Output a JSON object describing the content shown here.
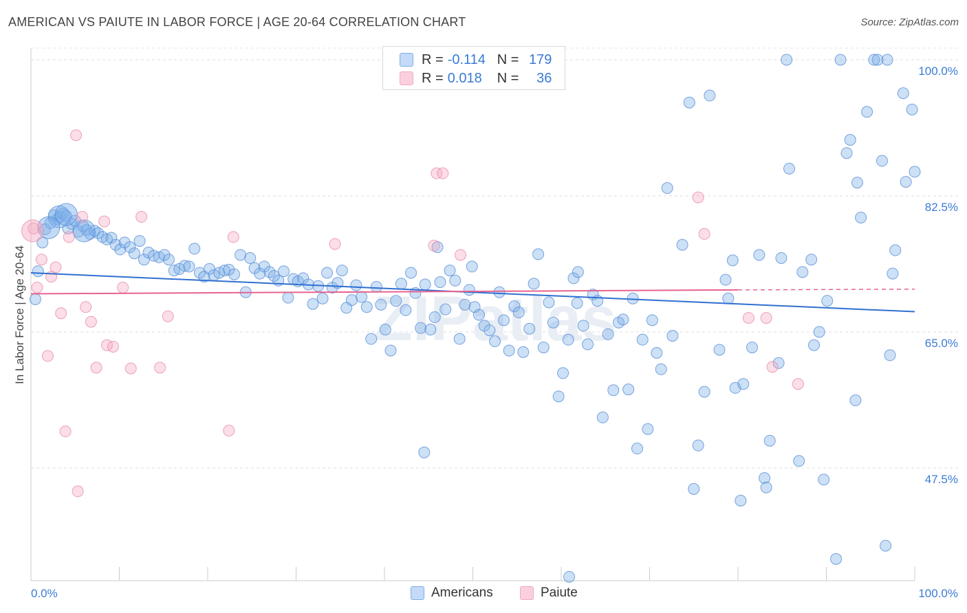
{
  "title": "AMERICAN VS PAIUTE IN LABOR FORCE | AGE 20-64 CORRELATION CHART",
  "source": "Source: ZipAtlas.com",
  "watermark": "ZIPatlas",
  "legend": {
    "rows": [
      {
        "series": "Americans",
        "r_label": "R =",
        "r_value": "-0.114",
        "n_label": "N =",
        "n_value": "179",
        "color": "#7aaee8"
      },
      {
        "series": "Paiute",
        "r_label": "R =",
        "r_value": "0.018",
        "n_label": "N =",
        "n_value": "36",
        "color": "#f4a7bf"
      }
    ]
  },
  "bottom_legend": [
    {
      "label": "Americans",
      "color": "#7aaee8"
    },
    {
      "label": "Paiute",
      "color": "#f4a7bf"
    }
  ],
  "chart_data": {
    "type": "scatter",
    "ylabel": "In Labor Force | Age 20-64",
    "xlabel": "",
    "x_tick_labels": [
      "0.0%",
      "100.0%"
    ],
    "y_tick_labels": [
      "100.0%",
      "82.5%",
      "65.0%",
      "47.5%"
    ],
    "y_ticks": [
      100.0,
      82.5,
      65.0,
      47.5
    ],
    "xlim": [
      0,
      100
    ],
    "ylim": [
      33.0,
      101.5
    ],
    "grid": true,
    "series": [
      {
        "name": "Americans",
        "color": "#7aaee8",
        "edge": "#5a8fd6",
        "trend": {
          "x0": 0.0,
          "y0": 72.6,
          "x1": 100.0,
          "y1": 67.6,
          "color": "#2f6fd1"
        },
        "points": [
          [
            0.5,
            69.2
          ],
          [
            0.8,
            72.8
          ],
          [
            1.3,
            76.5
          ],
          [
            1.6,
            78.2
          ],
          [
            2.2,
            79.0
          ],
          [
            2.6,
            80.0
          ],
          [
            3.0,
            79.5
          ],
          [
            3.3,
            79.8
          ],
          [
            3.6,
            80.2
          ],
          [
            4.0,
            79.9
          ],
          [
            4.2,
            78.3
          ],
          [
            4.6,
            78.9
          ],
          [
            5.0,
            79.3
          ],
          [
            5.4,
            77.9
          ],
          [
            5.9,
            78.6
          ],
          [
            6.3,
            78.1
          ],
          [
            6.7,
            77.6
          ],
          [
            7.2,
            78.0
          ],
          [
            7.6,
            77.7
          ],
          [
            8.1,
            77.2
          ],
          [
            8.6,
            76.9
          ],
          [
            9.1,
            77.1
          ],
          [
            9.6,
            76.2
          ],
          [
            10.1,
            75.6
          ],
          [
            10.6,
            76.5
          ],
          [
            11.2,
            75.9
          ],
          [
            11.7,
            75.1
          ],
          [
            12.3,
            76.7
          ],
          [
            12.8,
            74.3
          ],
          [
            13.3,
            75.2
          ],
          [
            13.9,
            74.8
          ],
          [
            14.5,
            74.6
          ],
          [
            15.1,
            74.9
          ],
          [
            15.6,
            74.3
          ],
          [
            16.2,
            72.9
          ],
          [
            16.8,
            73.1
          ],
          [
            17.4,
            73.5
          ],
          [
            17.9,
            73.4
          ],
          [
            18.5,
            75.7
          ],
          [
            19.1,
            72.6
          ],
          [
            19.6,
            72.1
          ],
          [
            20.2,
            73.1
          ],
          [
            20.7,
            72.3
          ],
          [
            21.3,
            72.6
          ],
          [
            21.9,
            72.9
          ],
          [
            22.4,
            73.0
          ],
          [
            23.0,
            72.4
          ],
          [
            23.7,
            74.9
          ],
          [
            24.3,
            70.1
          ],
          [
            24.8,
            74.5
          ],
          [
            25.3,
            73.2
          ],
          [
            25.9,
            72.5
          ],
          [
            26.4,
            73.4
          ],
          [
            27.0,
            72.7
          ],
          [
            27.5,
            72.2
          ],
          [
            28.0,
            71.6
          ],
          [
            28.6,
            72.8
          ],
          [
            29.1,
            69.4
          ],
          [
            29.7,
            71.8
          ],
          [
            30.2,
            71.5
          ],
          [
            30.8,
            71.9
          ],
          [
            31.4,
            71.1
          ],
          [
            31.9,
            68.6
          ],
          [
            32.5,
            70.9
          ],
          [
            33.0,
            69.3
          ],
          [
            33.5,
            72.6
          ],
          [
            34.1,
            70.7
          ],
          [
            34.7,
            71.3
          ],
          [
            35.2,
            72.9
          ],
          [
            35.7,
            68.1
          ],
          [
            36.3,
            69.1
          ],
          [
            36.8,
            71.0
          ],
          [
            37.4,
            69.5
          ],
          [
            38.0,
            68.2
          ],
          [
            38.5,
            64.1
          ],
          [
            39.1,
            70.8
          ],
          [
            39.6,
            68.5
          ],
          [
            40.1,
            65.3
          ],
          [
            40.7,
            62.6
          ],
          [
            41.3,
            69.0
          ],
          [
            41.9,
            71.2
          ],
          [
            42.4,
            67.8
          ],
          [
            43.0,
            72.6
          ],
          [
            43.5,
            70.0
          ],
          [
            44.1,
            65.5
          ],
          [
            44.6,
            71.1
          ],
          [
            45.2,
            65.3
          ],
          [
            45.7,
            66.9
          ],
          [
            46.3,
            71.4
          ],
          [
            46.9,
            67.9
          ],
          [
            47.4,
            72.9
          ],
          [
            48.0,
            71.6
          ],
          [
            48.5,
            64.1
          ],
          [
            49.1,
            68.5
          ],
          [
            49.6,
            70.4
          ],
          [
            50.2,
            68.2
          ],
          [
            50.7,
            67.2
          ],
          [
            51.3,
            65.8
          ],
          [
            51.9,
            65.2
          ],
          [
            52.5,
            63.8
          ],
          [
            53.0,
            70.1
          ],
          [
            53.5,
            66.5
          ],
          [
            54.1,
            62.6
          ],
          [
            54.7,
            68.3
          ],
          [
            55.2,
            67.5
          ],
          [
            55.7,
            62.4
          ],
          [
            56.4,
            65.4
          ],
          [
            56.9,
            71.2
          ],
          [
            57.4,
            75.0
          ],
          [
            58.0,
            63.0
          ],
          [
            58.6,
            68.8
          ],
          [
            59.1,
            66.2
          ],
          [
            59.7,
            56.7
          ],
          [
            60.2,
            59.7
          ],
          [
            60.8,
            64.0
          ],
          [
            61.4,
            71.9
          ],
          [
            61.9,
            72.7
          ],
          [
            62.5,
            65.8
          ],
          [
            63.0,
            63.4
          ],
          [
            63.6,
            69.8
          ],
          [
            64.1,
            69.0
          ],
          [
            64.7,
            54.0
          ],
          [
            65.3,
            64.7
          ],
          [
            65.9,
            57.5
          ],
          [
            66.5,
            66.2
          ],
          [
            67.0,
            66.6
          ],
          [
            67.6,
            57.6
          ],
          [
            68.1,
            69.3
          ],
          [
            68.6,
            50.0
          ],
          [
            69.2,
            64.0
          ],
          [
            69.8,
            52.5
          ],
          [
            70.3,
            66.5
          ],
          [
            70.8,
            62.3
          ],
          [
            71.3,
            60.2
          ],
          [
            72.0,
            83.5
          ],
          [
            72.6,
            64.5
          ],
          [
            73.7,
            76.2
          ],
          [
            74.5,
            94.5
          ],
          [
            75.0,
            44.8
          ],
          [
            75.5,
            50.4
          ],
          [
            76.2,
            57.3
          ],
          [
            76.8,
            95.4
          ],
          [
            77.9,
            62.7
          ],
          [
            78.6,
            71.7
          ],
          [
            78.9,
            69.3
          ],
          [
            79.4,
            74.2
          ],
          [
            79.7,
            57.8
          ],
          [
            80.3,
            43.3
          ],
          [
            80.6,
            58.3
          ],
          [
            81.6,
            63.0
          ],
          [
            82.4,
            74.9
          ],
          [
            83.0,
            46.2
          ],
          [
            83.2,
            45.0
          ],
          [
            83.6,
            51.0
          ],
          [
            84.6,
            61.0
          ],
          [
            84.9,
            74.5
          ],
          [
            85.5,
            100.0
          ],
          [
            85.8,
            86.0
          ],
          [
            86.9,
            48.4
          ],
          [
            87.3,
            72.7
          ],
          [
            88.3,
            74.3
          ],
          [
            88.6,
            63.3
          ],
          [
            89.2,
            65.0
          ],
          [
            89.7,
            46.0
          ],
          [
            90.1,
            69.0
          ],
          [
            91.1,
            35.8
          ],
          [
            91.6,
            100.0
          ],
          [
            92.3,
            88.0
          ],
          [
            92.7,
            89.7
          ],
          [
            93.3,
            56.2
          ],
          [
            93.5,
            84.2
          ],
          [
            93.9,
            79.7
          ],
          [
            94.6,
            93.3
          ],
          [
            95.4,
            100.0
          ],
          [
            95.8,
            100.0
          ],
          [
            96.3,
            87.0
          ],
          [
            96.7,
            37.5
          ],
          [
            96.9,
            100.0
          ],
          [
            97.5,
            72.5
          ],
          [
            97.8,
            75.5
          ],
          [
            98.7,
            95.7
          ],
          [
            99.0,
            84.3
          ],
          [
            100.0,
            85.6
          ],
          [
            97.2,
            62.0
          ],
          [
            99.7,
            93.6
          ],
          [
            60.9,
            33.5
          ],
          [
            61.8,
            68.7
          ],
          [
            44.5,
            49.5
          ],
          [
            46.0,
            75.9
          ],
          [
            49.9,
            73.4
          ]
        ],
        "large_points": [
          [
            3.2,
            79.8
          ],
          [
            4.0,
            80.1
          ],
          [
            2.0,
            78.4
          ],
          [
            6.0,
            78.0
          ]
        ]
      },
      {
        "name": "Paiute",
        "color": "#f4a7bf",
        "edge": "#e98bab",
        "trend": {
          "x0": 0.0,
          "y0": 69.9,
          "x1": 80.0,
          "y1": 70.4,
          "dash_x1": 100.0,
          "dash_y1": 70.5,
          "color": "#e5638f"
        },
        "points": [
          [
            0.3,
            78.3
          ],
          [
            0.7,
            70.7
          ],
          [
            1.2,
            74.3
          ],
          [
            1.9,
            61.9
          ],
          [
            2.3,
            72.1
          ],
          [
            2.8,
            73.3
          ],
          [
            3.4,
            67.4
          ],
          [
            3.9,
            52.2
          ],
          [
            4.3,
            77.2
          ],
          [
            5.1,
            90.3
          ],
          [
            5.3,
            44.5
          ],
          [
            5.8,
            79.8
          ],
          [
            6.2,
            68.2
          ],
          [
            6.8,
            66.3
          ],
          [
            7.4,
            60.4
          ],
          [
            8.3,
            79.2
          ],
          [
            8.6,
            63.3
          ],
          [
            9.3,
            63.1
          ],
          [
            10.4,
            70.7
          ],
          [
            11.3,
            60.3
          ],
          [
            12.5,
            79.8
          ],
          [
            14.6,
            60.4
          ],
          [
            15.5,
            67.0
          ],
          [
            22.4,
            52.3
          ],
          [
            22.9,
            77.2
          ],
          [
            34.4,
            76.3
          ],
          [
            45.6,
            76.1
          ],
          [
            45.9,
            85.4
          ],
          [
            46.6,
            85.4
          ],
          [
            48.6,
            74.9
          ],
          [
            75.5,
            82.3
          ],
          [
            76.2,
            77.6
          ],
          [
            81.2,
            66.8
          ],
          [
            83.2,
            66.8
          ],
          [
            83.9,
            60.5
          ],
          [
            86.8,
            58.3
          ]
        ],
        "large_points": [
          [
            0.2,
            78.0
          ]
        ]
      }
    ]
  }
}
